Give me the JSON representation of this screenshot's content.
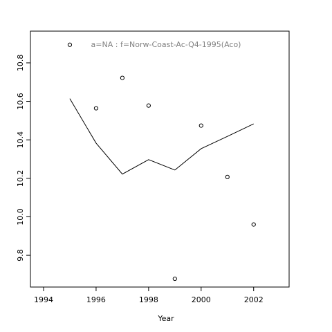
{
  "chart_data": {
    "type": "scatter",
    "title": "a=NA  :  f=Norw-Coast-Ac-Q4-1995(Aco)",
    "title_color": "#808080",
    "x_label": "Year",
    "xlim": [
      1993.5,
      2003.35
    ],
    "xticks": [
      1994,
      1996,
      1998,
      2000,
      2002
    ],
    "ylim": [
      9.635,
      10.965
    ],
    "yticks": [
      {
        "value": 9.8,
        "label": "9.8"
      },
      {
        "value": 10.0,
        "label": "10.0"
      },
      {
        "value": 10.2,
        "label": "10.2"
      },
      {
        "value": 10.4,
        "label": "10.4"
      },
      {
        "value": 10.6,
        "label": "10.6"
      },
      {
        "value": 10.8,
        "label": "10.8"
      }
    ],
    "series": [
      {
        "kind": "points",
        "color": "#000000",
        "x": [
          1995,
          1996,
          1997,
          1998,
          1999,
          2000,
          2001,
          2002
        ],
        "values": [
          10.894,
          10.564,
          10.722,
          10.578,
          9.678,
          10.474,
          10.207,
          9.96
        ]
      },
      {
        "kind": "line",
        "color": "#000000",
        "x": [
          1995,
          1996,
          1997,
          1998,
          1999,
          2000,
          2001,
          2002
        ],
        "values": [
          10.614,
          10.383,
          10.222,
          10.297,
          10.243,
          10.354,
          10.418,
          10.483
        ]
      }
    ]
  }
}
